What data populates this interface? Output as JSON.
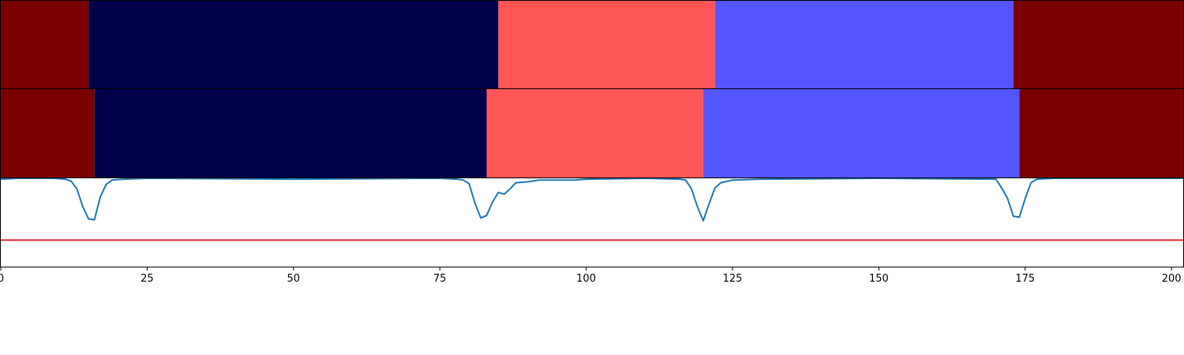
{
  "chart_data": {
    "type": "area",
    "xlim": [
      0,
      202
    ],
    "x_ticks": [
      0,
      25,
      50,
      75,
      100,
      125,
      150,
      175,
      200
    ],
    "segment_panels": [
      {
        "segments": [
          {
            "start": 0,
            "end": 15,
            "color": "#7a0000"
          },
          {
            "start": 15,
            "end": 85,
            "color": "#00004a"
          },
          {
            "start": 85,
            "end": 122,
            "color": "#ff5555"
          },
          {
            "start": 122,
            "end": 173,
            "color": "#5555ff"
          },
          {
            "start": 173,
            "end": 202,
            "color": "#7a0000"
          }
        ]
      },
      {
        "segments": [
          {
            "start": 0,
            "end": 16,
            "color": "#7a0000"
          },
          {
            "start": 16,
            "end": 83,
            "color": "#00004a"
          },
          {
            "start": 83,
            "end": 120,
            "color": "#ff5555"
          },
          {
            "start": 120,
            "end": 174,
            "color": "#5555ff"
          },
          {
            "start": 174,
            "end": 202,
            "color": "#7a0000"
          }
        ]
      }
    ],
    "line_panel": {
      "ylim": [
        0,
        1
      ],
      "threshold": 0.3,
      "threshold_color": "#d62728",
      "line_color": "#1f77b4",
      "points": [
        [
          0,
          0.99
        ],
        [
          3,
          1.0
        ],
        [
          6,
          1.0
        ],
        [
          9,
          1.0
        ],
        [
          11,
          0.99
        ],
        [
          12,
          0.97
        ],
        [
          13,
          0.88
        ],
        [
          14,
          0.68
        ],
        [
          15,
          0.54
        ],
        [
          16,
          0.53
        ],
        [
          17,
          0.79
        ],
        [
          18,
          0.93
        ],
        [
          19,
          0.98
        ],
        [
          21,
          0.99
        ],
        [
          25,
          1.0
        ],
        [
          50,
          0.99
        ],
        [
          75,
          1.0
        ],
        [
          78,
          0.99
        ],
        [
          79,
          0.98
        ],
        [
          80,
          0.94
        ],
        [
          81,
          0.72
        ],
        [
          82,
          0.55
        ],
        [
          83,
          0.58
        ],
        [
          84,
          0.73
        ],
        [
          85,
          0.84
        ],
        [
          86,
          0.82
        ],
        [
          87,
          0.88
        ],
        [
          88,
          0.95
        ],
        [
          90,
          0.96
        ],
        [
          92,
          0.98
        ],
        [
          95,
          0.98
        ],
        [
          98,
          0.98
        ],
        [
          100,
          0.99
        ],
        [
          110,
          1.0
        ],
        [
          116,
          0.99
        ],
        [
          117,
          0.98
        ],
        [
          118,
          0.88
        ],
        [
          119,
          0.68
        ],
        [
          120,
          0.52
        ],
        [
          121,
          0.71
        ],
        [
          122,
          0.89
        ],
        [
          123,
          0.95
        ],
        [
          125,
          0.98
        ],
        [
          130,
          0.99
        ],
        [
          150,
          1.0
        ],
        [
          170,
          0.99
        ],
        [
          171,
          0.89
        ],
        [
          172,
          0.77
        ],
        [
          173,
          0.57
        ],
        [
          174,
          0.56
        ],
        [
          175,
          0.77
        ],
        [
          176,
          0.95
        ],
        [
          177,
          0.99
        ],
        [
          180,
          1.0
        ],
        [
          202,
          1.0
        ]
      ]
    }
  }
}
